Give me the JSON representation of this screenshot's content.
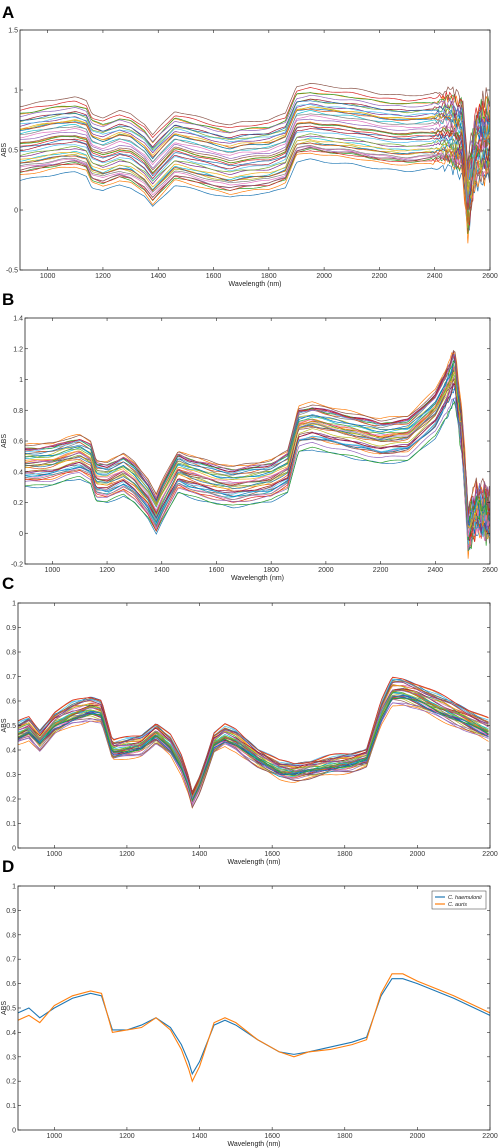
{
  "figure": {
    "panels": [
      "A",
      "B",
      "C",
      "D"
    ]
  },
  "chart_data": [
    {
      "panel": "A",
      "type": "line",
      "xlabel": "Wavelength (nm)",
      "ylabel": "ABS",
      "xlim": [
        900,
        2600
      ],
      "ylim": [
        -0.5,
        1.5
      ],
      "xticks": [
        1000,
        1200,
        1400,
        1600,
        1800,
        2000,
        2200,
        2400,
        2600
      ],
      "yticks": [
        -0.5,
        0,
        0.5,
        1,
        1.5
      ],
      "n_series": 40,
      "base_curve": {
        "x": [
          900,
          950,
          1000,
          1050,
          1100,
          1140,
          1160,
          1200,
          1260,
          1300,
          1350,
          1380,
          1400,
          1460,
          1500,
          1600,
          1660,
          1700,
          1800,
          1860,
          1900,
          1950,
          2000,
          2100,
          2200,
          2300,
          2400,
          2450,
          2500,
          2520,
          2550,
          2600
        ],
        "y": [
          0.56,
          0.58,
          0.6,
          0.62,
          0.63,
          0.6,
          0.5,
          0.47,
          0.52,
          0.5,
          0.42,
          0.33,
          0.38,
          0.52,
          0.5,
          0.44,
          0.41,
          0.43,
          0.45,
          0.5,
          0.72,
          0.74,
          0.72,
          0.7,
          0.66,
          0.64,
          0.66,
          0.68,
          0.62,
          0.1,
          0.55,
          0.6
        ]
      },
      "offset_range": [
        -0.3,
        0.28
      ],
      "noisy_range": [
        2380,
        2600
      ]
    },
    {
      "panel": "B",
      "type": "line",
      "xlabel": "Wavelength (nm)",
      "ylabel": "ABS",
      "xlim": [
        900,
        2600
      ],
      "ylim": [
        -0.2,
        1.4
      ],
      "xticks": [
        1000,
        1200,
        1400,
        1600,
        1800,
        2000,
        2200,
        2400,
        2600
      ],
      "yticks": [
        -0.2,
        0,
        0.2,
        0.4,
        0.6,
        0.8,
        1,
        1.2,
        1.4
      ],
      "n_series": 40,
      "base_curve": {
        "x": [
          900,
          950,
          1000,
          1050,
          1100,
          1140,
          1160,
          1200,
          1260,
          1300,
          1350,
          1380,
          1400,
          1460,
          1500,
          1600,
          1660,
          1700,
          1800,
          1860,
          1900,
          1950,
          2000,
          2100,
          2200,
          2300,
          2400,
          2450,
          2470,
          2500,
          2520,
          2550,
          2600
        ],
        "y": [
          0.44,
          0.44,
          0.45,
          0.48,
          0.5,
          0.46,
          0.34,
          0.33,
          0.38,
          0.33,
          0.22,
          0.12,
          0.2,
          0.4,
          0.37,
          0.32,
          0.3,
          0.31,
          0.34,
          0.4,
          0.68,
          0.7,
          0.68,
          0.64,
          0.6,
          0.62,
          0.78,
          0.95,
          1.05,
          0.6,
          0.0,
          0.15,
          0.1
        ]
      },
      "offset_range": [
        -0.12,
        0.14
      ],
      "noisy_range": [
        2420,
        2600
      ]
    },
    {
      "panel": "C",
      "type": "line",
      "xlabel": "Wavelength (nm)",
      "ylabel": "ABS",
      "xlim": [
        900,
        2200
      ],
      "ylim": [
        0,
        1
      ],
      "xticks": [
        1000,
        1200,
        1400,
        1600,
        1800,
        2000,
        2200
      ],
      "yticks": [
        0,
        0.1,
        0.2,
        0.3,
        0.4,
        0.5,
        0.6,
        0.7,
        0.8,
        0.9,
        1
      ],
      "n_series": 40,
      "base_curve": {
        "x": [
          900,
          930,
          960,
          1000,
          1050,
          1100,
          1130,
          1160,
          1200,
          1240,
          1280,
          1320,
          1350,
          1370,
          1380,
          1400,
          1440,
          1470,
          1500,
          1560,
          1620,
          1660,
          1700,
          1760,
          1820,
          1860,
          1900,
          1930,
          1960,
          2000,
          2100,
          2200
        ],
        "y": [
          0.47,
          0.49,
          0.44,
          0.51,
          0.55,
          0.57,
          0.56,
          0.4,
          0.41,
          0.42,
          0.47,
          0.42,
          0.34,
          0.26,
          0.2,
          0.26,
          0.43,
          0.46,
          0.44,
          0.37,
          0.32,
          0.31,
          0.32,
          0.34,
          0.35,
          0.37,
          0.55,
          0.64,
          0.64,
          0.62,
          0.55,
          0.48
        ]
      },
      "offset_range": [
        -0.025,
        0.025
      ],
      "noisy_range": null
    },
    {
      "panel": "D",
      "type": "line",
      "xlabel": "Wavelength (nm)",
      "ylabel": "ABS",
      "xlim": [
        900,
        2200
      ],
      "ylim": [
        0,
        1
      ],
      "xticks": [
        1000,
        1200,
        1400,
        1600,
        1800,
        2000,
        2200
      ],
      "yticks": [
        0,
        0.1,
        0.2,
        0.3,
        0.4,
        0.5,
        0.6,
        0.7,
        0.8,
        0.9,
        1
      ],
      "legend": "top-right",
      "x": [
        900,
        930,
        960,
        1000,
        1050,
        1100,
        1130,
        1160,
        1200,
        1240,
        1280,
        1320,
        1350,
        1370,
        1380,
        1400,
        1440,
        1470,
        1500,
        1560,
        1620,
        1660,
        1700,
        1760,
        1820,
        1860,
        1900,
        1930,
        1960,
        2000,
        2100,
        2200
      ],
      "series": [
        {
          "name": "C. haemulonii",
          "color": "#1f77b4",
          "values": [
            0.48,
            0.5,
            0.46,
            0.5,
            0.54,
            0.56,
            0.55,
            0.41,
            0.41,
            0.43,
            0.46,
            0.42,
            0.35,
            0.28,
            0.23,
            0.28,
            0.43,
            0.45,
            0.43,
            0.37,
            0.32,
            0.31,
            0.32,
            0.34,
            0.36,
            0.38,
            0.55,
            0.62,
            0.62,
            0.6,
            0.54,
            0.47
          ]
        },
        {
          "name": "C. auris",
          "color": "#ff7f0e",
          "values": [
            0.45,
            0.47,
            0.44,
            0.51,
            0.55,
            0.57,
            0.56,
            0.4,
            0.41,
            0.42,
            0.46,
            0.41,
            0.33,
            0.25,
            0.2,
            0.26,
            0.44,
            0.46,
            0.44,
            0.37,
            0.32,
            0.3,
            0.32,
            0.33,
            0.35,
            0.37,
            0.56,
            0.64,
            0.64,
            0.61,
            0.55,
            0.48
          ]
        }
      ]
    }
  ]
}
